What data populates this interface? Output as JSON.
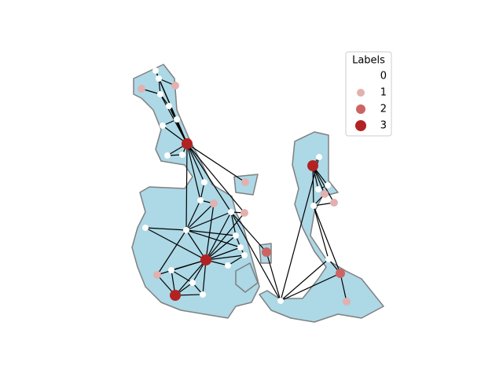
{
  "legend": {
    "title": "Labels",
    "entries": [
      {
        "label": "0",
        "color": "#ffffff",
        "size": 4
      },
      {
        "label": "1",
        "color": "#e3b0b0",
        "size": 5
      },
      {
        "label": "2",
        "color": "#cd6464",
        "size": 6
      },
      {
        "label": "3",
        "color": "#b22222",
        "size": 7
      }
    ]
  }
}
